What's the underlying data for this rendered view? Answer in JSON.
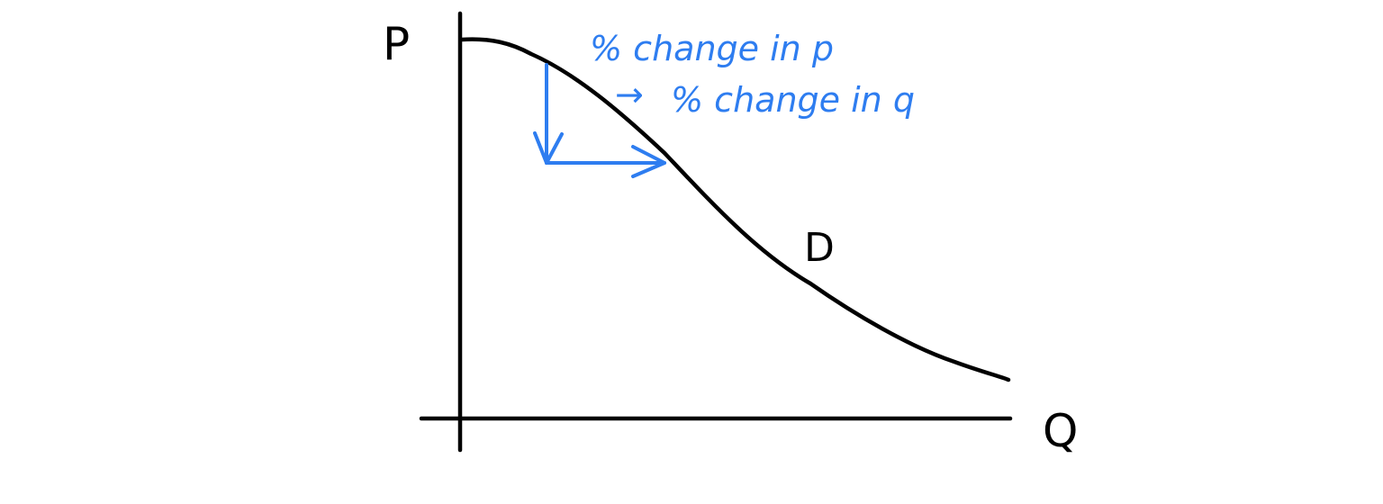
{
  "axes": {
    "y_label": "P",
    "x_label": "Q"
  },
  "curve": {
    "label": "D"
  },
  "annotation": {
    "line1": "% change in p",
    "arrow": "→",
    "line2": "% change in q"
  },
  "colors": {
    "ink": "#000000",
    "annotation": "#2e7df0",
    "background": "#ffffff"
  }
}
